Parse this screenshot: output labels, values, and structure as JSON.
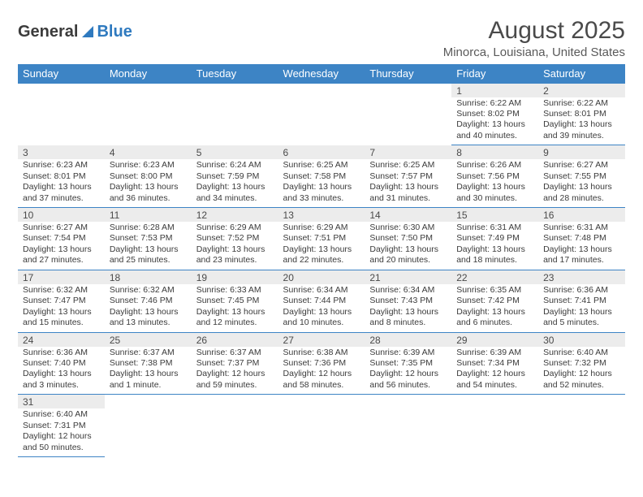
{
  "colors": {
    "header_bg": "#3d84c5",
    "header_text": "#ffffff",
    "daynum_bg": "#ececec",
    "row_divider": "#3d84c5",
    "logo_accent": "#2f7abf",
    "logo_text": "#3b3b3b"
  },
  "logo": {
    "text1": "General",
    "text2": "Blue"
  },
  "title": "August 2025",
  "subtitle": "Minorca, Louisiana, United States",
  "weekdays": [
    "Sunday",
    "Monday",
    "Tuesday",
    "Wednesday",
    "Thursday",
    "Friday",
    "Saturday"
  ],
  "weeks": [
    {
      "d": [
        "",
        "",
        "",
        "",
        "",
        "1",
        "2"
      ],
      "c": [
        "",
        "",
        "",
        "",
        "",
        "Sunrise: 6:22 AM\nSunset: 8:02 PM\nDaylight: 13 hours and 40 minutes.",
        "Sunrise: 6:22 AM\nSunset: 8:01 PM\nDaylight: 13 hours and 39 minutes."
      ]
    },
    {
      "d": [
        "3",
        "4",
        "5",
        "6",
        "7",
        "8",
        "9"
      ],
      "c": [
        "Sunrise: 6:23 AM\nSunset: 8:01 PM\nDaylight: 13 hours and 37 minutes.",
        "Sunrise: 6:23 AM\nSunset: 8:00 PM\nDaylight: 13 hours and 36 minutes.",
        "Sunrise: 6:24 AM\nSunset: 7:59 PM\nDaylight: 13 hours and 34 minutes.",
        "Sunrise: 6:25 AM\nSunset: 7:58 PM\nDaylight: 13 hours and 33 minutes.",
        "Sunrise: 6:25 AM\nSunset: 7:57 PM\nDaylight: 13 hours and 31 minutes.",
        "Sunrise: 6:26 AM\nSunset: 7:56 PM\nDaylight: 13 hours and 30 minutes.",
        "Sunrise: 6:27 AM\nSunset: 7:55 PM\nDaylight: 13 hours and 28 minutes."
      ]
    },
    {
      "d": [
        "10",
        "11",
        "12",
        "13",
        "14",
        "15",
        "16"
      ],
      "c": [
        "Sunrise: 6:27 AM\nSunset: 7:54 PM\nDaylight: 13 hours and 27 minutes.",
        "Sunrise: 6:28 AM\nSunset: 7:53 PM\nDaylight: 13 hours and 25 minutes.",
        "Sunrise: 6:29 AM\nSunset: 7:52 PM\nDaylight: 13 hours and 23 minutes.",
        "Sunrise: 6:29 AM\nSunset: 7:51 PM\nDaylight: 13 hours and 22 minutes.",
        "Sunrise: 6:30 AM\nSunset: 7:50 PM\nDaylight: 13 hours and 20 minutes.",
        "Sunrise: 6:31 AM\nSunset: 7:49 PM\nDaylight: 13 hours and 18 minutes.",
        "Sunrise: 6:31 AM\nSunset: 7:48 PM\nDaylight: 13 hours and 17 minutes."
      ]
    },
    {
      "d": [
        "17",
        "18",
        "19",
        "20",
        "21",
        "22",
        "23"
      ],
      "c": [
        "Sunrise: 6:32 AM\nSunset: 7:47 PM\nDaylight: 13 hours and 15 minutes.",
        "Sunrise: 6:32 AM\nSunset: 7:46 PM\nDaylight: 13 hours and 13 minutes.",
        "Sunrise: 6:33 AM\nSunset: 7:45 PM\nDaylight: 13 hours and 12 minutes.",
        "Sunrise: 6:34 AM\nSunset: 7:44 PM\nDaylight: 13 hours and 10 minutes.",
        "Sunrise: 6:34 AM\nSunset: 7:43 PM\nDaylight: 13 hours and 8 minutes.",
        "Sunrise: 6:35 AM\nSunset: 7:42 PM\nDaylight: 13 hours and 6 minutes.",
        "Sunrise: 6:36 AM\nSunset: 7:41 PM\nDaylight: 13 hours and 5 minutes."
      ]
    },
    {
      "d": [
        "24",
        "25",
        "26",
        "27",
        "28",
        "29",
        "30"
      ],
      "c": [
        "Sunrise: 6:36 AM\nSunset: 7:40 PM\nDaylight: 13 hours and 3 minutes.",
        "Sunrise: 6:37 AM\nSunset: 7:38 PM\nDaylight: 13 hours and 1 minute.",
        "Sunrise: 6:37 AM\nSunset: 7:37 PM\nDaylight: 12 hours and 59 minutes.",
        "Sunrise: 6:38 AM\nSunset: 7:36 PM\nDaylight: 12 hours and 58 minutes.",
        "Sunrise: 6:39 AM\nSunset: 7:35 PM\nDaylight: 12 hours and 56 minutes.",
        "Sunrise: 6:39 AM\nSunset: 7:34 PM\nDaylight: 12 hours and 54 minutes.",
        "Sunrise: 6:40 AM\nSunset: 7:32 PM\nDaylight: 12 hours and 52 minutes."
      ]
    },
    {
      "d": [
        "31",
        "",
        "",
        "",
        "",
        "",
        ""
      ],
      "c": [
        "Sunrise: 6:40 AM\nSunset: 7:31 PM\nDaylight: 12 hours and 50 minutes.",
        "",
        "",
        "",
        "",
        "",
        ""
      ]
    }
  ]
}
